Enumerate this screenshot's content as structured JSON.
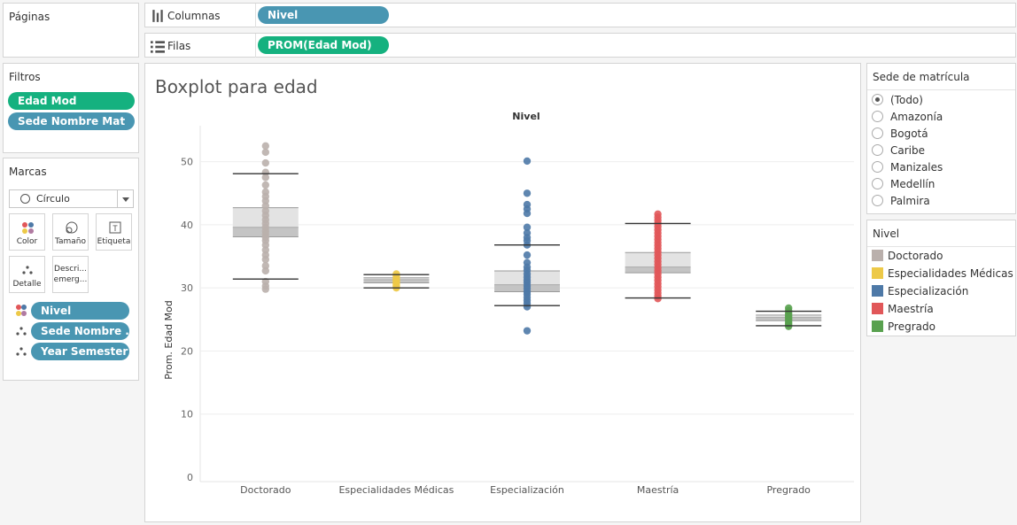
{
  "shelves": {
    "pages_label": "Páginas",
    "columns_label": "Columnas",
    "columns_pill": "Nivel",
    "rows_label": "Filas",
    "rows_pill": "PROM(Edad Mod)"
  },
  "filters": {
    "title": "Filtros",
    "items": [
      "Edad Mod",
      "Sede Nombre Mat"
    ]
  },
  "marks": {
    "title": "Marcas",
    "mark_type": "Círculo",
    "buttons": {
      "color": "Color",
      "size": "Tamaño",
      "label": "Etiqueta",
      "detail": "Detalle",
      "tooltip": "Descri... emerg..."
    },
    "fields": [
      "Nivel",
      "Sede Nombre ..",
      "Year Semester"
    ]
  },
  "sede_filter": {
    "title": "Sede de matrícula",
    "options": [
      "(Todo)",
      "Amazonía",
      "Bogotá",
      "Caribe",
      "Manizales",
      "Medellín",
      "Palmira"
    ],
    "selected": "(Todo)"
  },
  "legend": {
    "title": "Nivel",
    "items": [
      {
        "label": "Doctorado",
        "color": "#bab0ac"
      },
      {
        "label": "Especialidades Médicas",
        "color": "#edc948"
      },
      {
        "label": "Especialización",
        "color": "#4e79a7"
      },
      {
        "label": "Maestría",
        "color": "#e15759"
      },
      {
        "label": "Pregrado",
        "color": "#59a14f"
      }
    ]
  },
  "chart_title": "Boxplot para edad",
  "chart_data": {
    "type": "scatter",
    "title": "Boxplot para edad",
    "column_header": "Nivel",
    "xlabel": "",
    "ylabel": "Prom. Edad Mod",
    "ylim": [
      0,
      55
    ],
    "yticks": [
      0,
      10,
      20,
      30,
      40,
      50
    ],
    "grid": true,
    "categories": [
      "Doctorado",
      "Especialidades Médicas",
      "Especialización",
      "Maestría",
      "Pregrado"
    ],
    "boxes": [
      {
        "category": "Doctorado",
        "whisker_low": 31.4,
        "q1": 38.1,
        "median": 39.6,
        "q3": 42.7,
        "whisker_high": 48.1,
        "color": "#bab0ac"
      },
      {
        "category": "Especialidades Médicas",
        "whisker_low": 30.0,
        "q1": 30.8,
        "median": 31.3,
        "q3": 31.6,
        "whisker_high": 32.1,
        "color": "#edc948"
      },
      {
        "category": "Especialización",
        "whisker_low": 27.2,
        "q1": 29.4,
        "median": 30.5,
        "q3": 32.7,
        "whisker_high": 36.8,
        "color": "#4e79a7"
      },
      {
        "category": "Maestría",
        "whisker_low": 28.4,
        "q1": 32.4,
        "median": 33.3,
        "q3": 35.6,
        "whisker_high": 40.2,
        "color": "#e15759"
      },
      {
        "category": "Pregrado",
        "whisker_low": 24.0,
        "q1": 24.8,
        "median": 25.3,
        "q3": 25.7,
        "whisker_high": 26.3,
        "color": "#59a14f"
      }
    ],
    "series": [
      {
        "category": "Doctorado",
        "values": [
          52.5,
          51.5,
          49.8,
          48.3,
          47.5,
          46.3,
          45.2,
          44.5,
          43.8,
          43.0,
          42.2,
          41.5,
          40.8,
          40.2,
          39.6,
          39.0,
          38.5,
          38.0,
          37.5,
          36.8,
          36.0,
          35.2,
          34.5,
          33.5,
          32.7,
          31.0,
          30.3,
          29.8
        ]
      },
      {
        "category": "Especialidades Médicas",
        "values": [
          32.2,
          31.9,
          31.6,
          31.4,
          31.2,
          31.0,
          30.8,
          30.6,
          30.4,
          30.2,
          30.0
        ]
      },
      {
        "category": "Especialización",
        "values": [
          50.1,
          45.0,
          43.2,
          42.5,
          41.8,
          39.6,
          38.7,
          38.0,
          37.5,
          36.8,
          35.2,
          34.0,
          33.3,
          32.8,
          32.2,
          31.7,
          31.2,
          30.8,
          30.3,
          29.9,
          29.4,
          29.0,
          28.5,
          28.0,
          27.5,
          27.0,
          23.2
        ]
      },
      {
        "category": "Maestría",
        "values": [
          41.7,
          41.2,
          40.7,
          40.2,
          39.7,
          39.2,
          38.7,
          38.2,
          37.7,
          37.2,
          36.7,
          36.2,
          35.7,
          35.2,
          34.7,
          34.2,
          33.7,
          33.2,
          32.7,
          32.2,
          31.7,
          31.2,
          30.7,
          30.2,
          29.7,
          29.2,
          28.7,
          28.3
        ]
      },
      {
        "category": "Pregrado",
        "values": [
          26.8,
          26.4,
          26.0,
          25.7,
          25.4,
          25.1,
          24.8,
          24.5,
          24.2,
          23.9
        ]
      }
    ]
  }
}
